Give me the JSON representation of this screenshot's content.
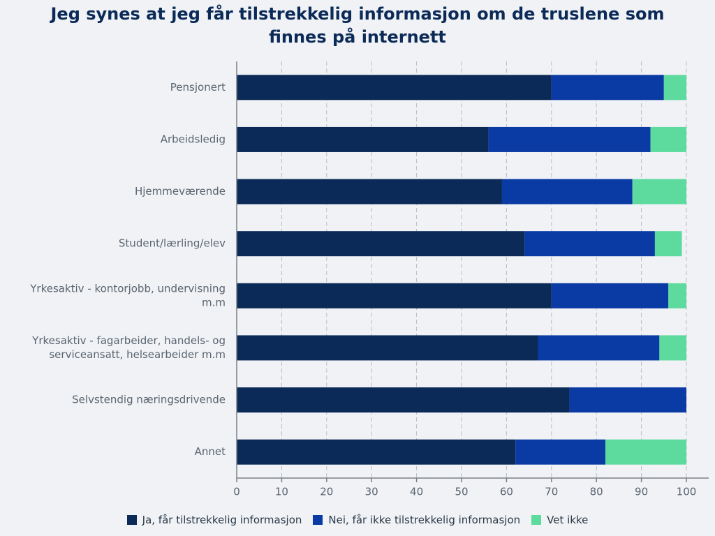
{
  "title_lines": [
    "Jeg synes at jeg får tilstrekkelig informasjon om de truslene som",
    "finnes på internett"
  ],
  "colors": {
    "background": "#f0f2f5",
    "title": "#0b2a57",
    "axis_text": "#5b6470",
    "grid": "#b9bec6",
    "axis_line": "#7a7f87"
  },
  "chart_data": {
    "type": "bar",
    "orientation": "horizontal",
    "stacked": true,
    "title": "Jeg synes at jeg får tilstrekkelig informasjon om de truslene som finnes på internett",
    "categories": [
      "Pensjonert",
      "Arbeidsledig",
      "Hjemmeværende",
      "Student/lærling/elev",
      "Yrkesaktiv - kontorjobb, undervisning m.m",
      "Yrkesaktiv - fagarbeider, handels- og serviceansatt, helsearbeider m.m",
      "Selvstendig næringsdrivende",
      "Annet"
    ],
    "category_label_lines": [
      [
        "Pensjonert"
      ],
      [
        "Arbeidsledig"
      ],
      [
        "Hjemmeværende"
      ],
      [
        "Student/lærling/elev"
      ],
      [
        "Yrkesaktiv - kontorjobb, undervisning",
        "m.m"
      ],
      [
        "Yrkesaktiv - fagarbeider, handels- og",
        "serviceansatt, helsearbeider m.m"
      ],
      [
        "Selvstendig næringsdrivende"
      ],
      [
        "Annet"
      ]
    ],
    "series": [
      {
        "name": "Ja, får tilstrekkelig informasjon",
        "color": "#0b2a57",
        "values": [
          70,
          56,
          59,
          64,
          70,
          67,
          74,
          62
        ]
      },
      {
        "name": "Nei, får ikke tilstrekkelig informasjon",
        "color": "#0a3aa4",
        "values": [
          25,
          36,
          29,
          29,
          26,
          27,
          26,
          20
        ]
      },
      {
        "name": "Vet ikke",
        "color": "#5ddb9e",
        "values": [
          5,
          8,
          12,
          6,
          4,
          6,
          0,
          18
        ]
      }
    ],
    "xlim": [
      0,
      100
    ],
    "xticks": [
      0,
      10,
      20,
      30,
      40,
      50,
      60,
      70,
      80,
      90,
      100
    ],
    "grid": true,
    "legend_position": "bottom"
  }
}
